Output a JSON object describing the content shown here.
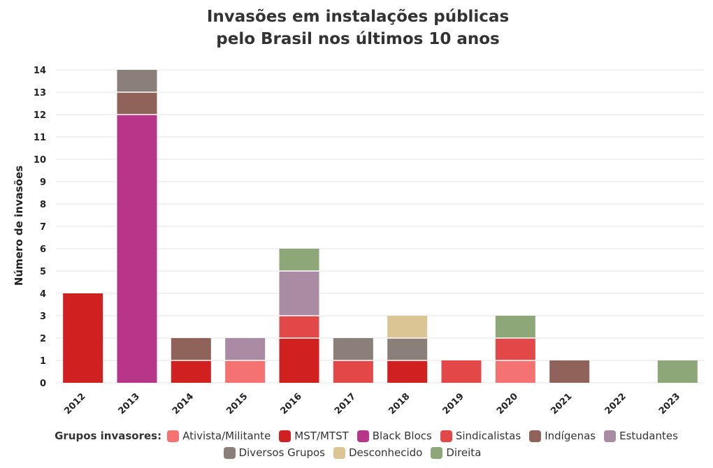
{
  "chart_data": {
    "type": "bar",
    "stacked": true,
    "title_lines": [
      "Invasões em instalações públicas",
      "pelo Brasil nos últimos 10 anos"
    ],
    "xlabel": "",
    "ylabel": "Número de invasões",
    "ylim": [
      0,
      14
    ],
    "yticks": [
      0,
      1,
      2,
      3,
      4,
      5,
      6,
      7,
      8,
      9,
      10,
      11,
      12,
      13,
      14
    ],
    "grid": true,
    "categories": [
      "2012",
      "2013",
      "2014",
      "2015",
      "2016",
      "2017",
      "2018",
      "2019",
      "2020",
      "2021",
      "2022",
      "2023"
    ],
    "series": [
      {
        "name": "Atividade",
        "label": "Ativista/Militante",
        "color": "#f47272",
        "values": [
          0,
          0,
          0,
          1,
          0,
          0,
          0,
          0,
          1,
          0,
          0,
          0
        ]
      },
      {
        "name": "MST",
        "label": "MST/MTST",
        "color": "#d12020",
        "values": [
          4,
          0,
          1,
          0,
          2,
          0,
          1,
          0,
          0,
          0,
          0,
          0
        ]
      },
      {
        "name": "BlackBlocs",
        "label": "Black Blocs",
        "color": "#b83689",
        "values": [
          0,
          12,
          0,
          0,
          0,
          0,
          0,
          0,
          0,
          0,
          0,
          0
        ]
      },
      {
        "name": "Sindicalistas",
        "label": "Sindicalistas",
        "color": "#e34848",
        "values": [
          0,
          0,
          0,
          0,
          1,
          1,
          0,
          1,
          1,
          0,
          0,
          0
        ]
      },
      {
        "name": "Indigenas",
        "label": "Indígenas",
        "color": "#8f6359",
        "values": [
          0,
          1,
          1,
          0,
          0,
          0,
          0,
          0,
          0,
          1,
          0,
          0
        ]
      },
      {
        "name": "Estudantes",
        "label": "Estudantes",
        "color": "#a98ba4",
        "values": [
          0,
          0,
          0,
          1,
          2,
          0,
          0,
          0,
          0,
          0,
          0,
          0
        ]
      },
      {
        "name": "Diversos",
        "label": "Diversos Grupos",
        "color": "#8b8079",
        "values": [
          0,
          1,
          0,
          0,
          0,
          1,
          1,
          0,
          0,
          0,
          0,
          0
        ]
      },
      {
        "name": "Desconhecido",
        "label": "Desconhecido",
        "color": "#dbc594",
        "values": [
          0,
          0,
          0,
          0,
          0,
          0,
          1,
          0,
          0,
          0,
          0,
          0
        ]
      },
      {
        "name": "Direita",
        "label": "Direita",
        "color": "#8ea779",
        "values": [
          0,
          0,
          0,
          0,
          1,
          0,
          0,
          0,
          1,
          0,
          0,
          1
        ]
      }
    ],
    "legend_title": "Grupos invasores:",
    "legend_position": "bottom"
  }
}
